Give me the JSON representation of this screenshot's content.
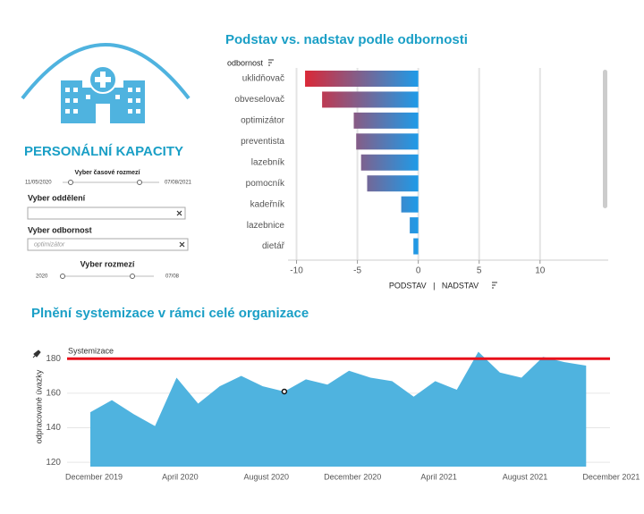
{
  "sidebar": {
    "title": "PERSONÁLNÍ KAPACITY",
    "date_range": {
      "label": "Vyber časové rozmezí",
      "start": "11/05/2020",
      "end": "07/08/2021"
    },
    "department": {
      "label": "Vyber oddělení"
    },
    "specialty": {
      "label": "Vyber odbornost",
      "placeholder": "optimizátor"
    },
    "range": {
      "label": "Vyber rozmezí",
      "start": "2020",
      "end": "07/08"
    }
  },
  "bar_chart": {
    "type": "bar",
    "orientation": "horizontal",
    "title": "Podstav vs. nadstav podle odbornosti",
    "category_label": "odbornost",
    "x_label": "PODSTAV   |   NADSTAV",
    "categories": [
      "uklidňovač",
      "obveselovač",
      "optimizátor",
      "preventista",
      "lazebník",
      "pomocník",
      "kadeřník",
      "lazebnice",
      "dietář"
    ],
    "values": [
      -9.3,
      -7.9,
      -5.3,
      -5.1,
      -4.7,
      -4.2,
      -1.4,
      -0.7,
      -0.4
    ],
    "xlim": [
      -10.7,
      15.6
    ],
    "xticks": [
      -10,
      -5,
      0,
      5,
      10
    ],
    "colors": {
      "low": "#e8202a",
      "high": "#1e9be8"
    },
    "grid": true
  },
  "area_chart": {
    "type": "area",
    "title": "Plnění systemizace v rámci celé organizace",
    "y_label": "odpracované úvazky",
    "x": [
      "2019-12",
      "2020-01",
      "2020-02",
      "2020-03",
      "2020-04",
      "2020-05",
      "2020-06",
      "2020-07",
      "2020-08",
      "2020-09",
      "2020-10",
      "2020-11",
      "2020-12",
      "2021-01",
      "2021-02",
      "2021-03",
      "2021-04",
      "2021-05",
      "2021-06",
      "2021-07",
      "2021-08",
      "2021-09",
      "2021-10",
      "2021-11"
    ],
    "values": [
      149,
      156,
      148,
      141,
      169,
      154,
      164,
      170,
      164,
      161,
      168,
      165,
      173,
      169,
      167,
      158,
      167,
      162,
      184,
      172,
      169,
      181,
      178,
      176
    ],
    "color": "#4fb3df",
    "ylim": [
      117.5,
      188.4
    ],
    "yticks": [
      120,
      140,
      160,
      180
    ],
    "xticks": [
      {
        "value": "2019-12",
        "label": "December 2019"
      },
      {
        "value": "2020-04",
        "label": "April 2020"
      },
      {
        "value": "2020-08",
        "label": "August 2020"
      },
      {
        "value": "2020-12",
        "label": "December 2020"
      },
      {
        "value": "2021-04",
        "label": "April 2021"
      },
      {
        "value": "2021-08",
        "label": "August 2021"
      },
      {
        "value": "2021-12",
        "label": "December 2021"
      }
    ],
    "reference_line": {
      "value": 180,
      "label": "Systemizace",
      "color": "#e8101a"
    },
    "selected_x": "2020-09",
    "grid": true
  }
}
